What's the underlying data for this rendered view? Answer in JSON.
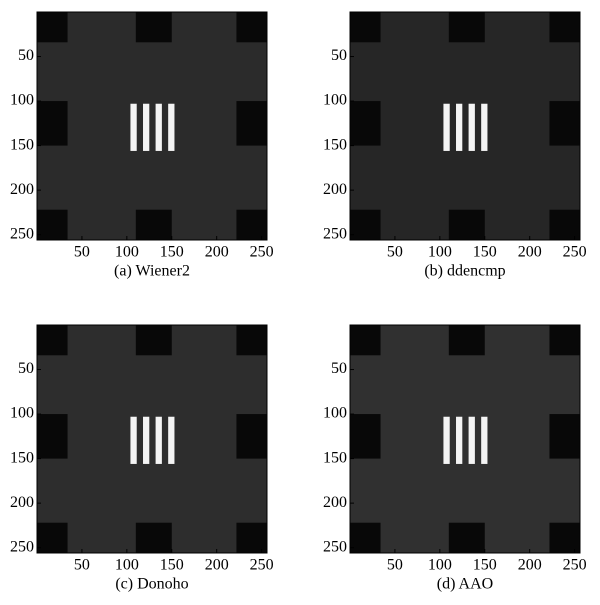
{
  "chart_data": [
    {
      "type": "image",
      "caption": "(a) Wiener2",
      "xlim": [
        0,
        256
      ],
      "ylim": [
        0,
        256
      ],
      "y_inverted": true,
      "xticks": [
        50,
        100,
        150,
        200,
        250
      ],
      "yticks": [
        50,
        100,
        150,
        200,
        250
      ]
    },
    {
      "type": "image",
      "caption": "(b) ddencmp",
      "xlim": [
        0,
        256
      ],
      "ylim": [
        0,
        256
      ],
      "y_inverted": true,
      "xticks": [
        50,
        100,
        150,
        200,
        250
      ],
      "yticks": [
        50,
        100,
        150,
        200,
        250
      ]
    },
    {
      "type": "image",
      "caption": "(c) Donoho",
      "xlim": [
        0,
        256
      ],
      "ylim": [
        0,
        256
      ],
      "y_inverted": true,
      "xticks": [
        50,
        100,
        150,
        200,
        250
      ],
      "yticks": [
        50,
        100,
        150,
        200,
        250
      ]
    },
    {
      "type": "image",
      "caption": "(d) AAO",
      "xlim": [
        0,
        256
      ],
      "ylim": [
        0,
        256
      ],
      "y_inverted": true,
      "xticks": [
        50,
        100,
        150,
        200,
        250
      ],
      "yticks": [
        50,
        100,
        150,
        200,
        250
      ]
    }
  ]
}
